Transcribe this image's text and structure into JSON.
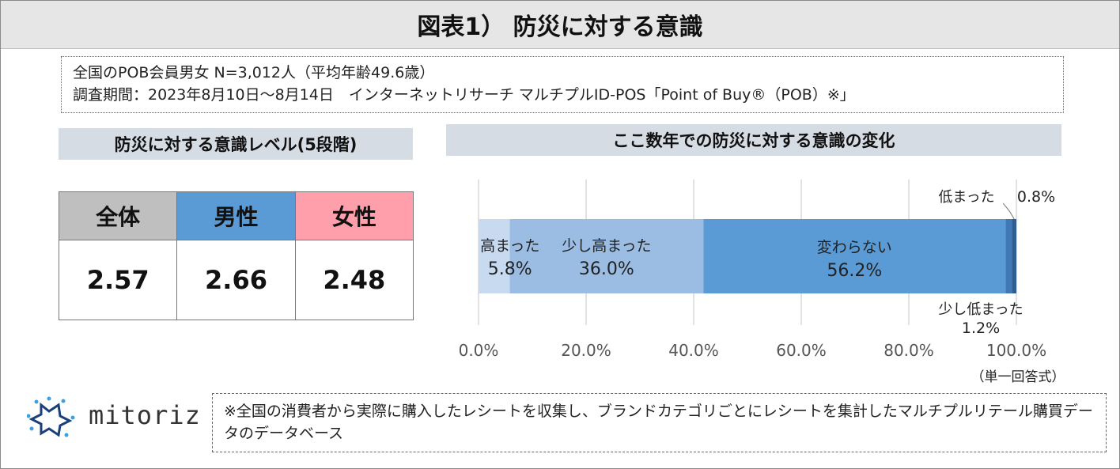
{
  "title": "図表1） 防災に対する意識",
  "survey": {
    "line1": "全国のPOB会員男女 N=3,012人（平均年齢49.6歳）",
    "line2": "調査期間：2023年8月10日～8月14日　インターネットリサーチ マルチプルID-POS「Point of Buy®（POB）※」"
  },
  "left_section": {
    "label": "防災に対する意識レベル(5段階)",
    "headers": [
      {
        "label": "全体",
        "color": "#bfbfbf"
      },
      {
        "label": "男性",
        "color": "#5b9bd5"
      },
      {
        "label": "女性",
        "color": "#ff9fac"
      }
    ],
    "values": [
      "2.57",
      "2.66",
      "2.48"
    ]
  },
  "right_section": {
    "label": "ここ数年での防災に対する意識の変化"
  },
  "chart_data": {
    "type": "bar",
    "orientation": "horizontal-stacked-100",
    "xlim": [
      0,
      100
    ],
    "x_ticks": [
      "0.0%",
      "20.0%",
      "40.0%",
      "60.0%",
      "80.0%",
      "100.0%"
    ],
    "series": [
      {
        "name": "高まった",
        "value": 5.8,
        "label": "5.8%",
        "color": "#c8daf0"
      },
      {
        "name": "少し高まった",
        "value": 36.0,
        "label": "36.0%",
        "color": "#9bbde3"
      },
      {
        "name": "変わらない",
        "value": 56.2,
        "label": "56.2%",
        "color": "#5b9bd5"
      },
      {
        "name": "少し低まった",
        "value": 1.2,
        "label": "1.2%",
        "color": "#3f78b5"
      },
      {
        "name": "低まった",
        "value": 0.8,
        "label": "0.8%",
        "color": "#2e5d90"
      }
    ],
    "answer_type": "（単一回答式）",
    "grid": true
  },
  "note": "※全国の消費者から実際に購入したレシートを収集し、ブランドカテゴリごとにレシートを集計したマルチプルリテール購買データのデータベース",
  "logo": {
    "text": "mitoriz"
  }
}
